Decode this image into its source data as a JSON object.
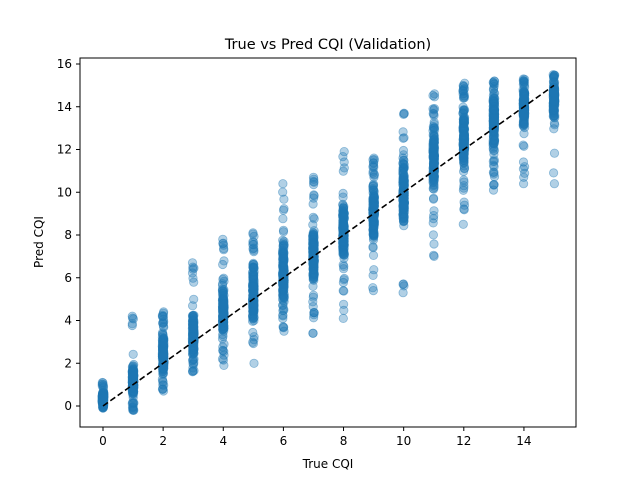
{
  "chart_data": {
    "type": "scatter",
    "title": "True vs Pred CQI (Validation)",
    "xlabel": "True CQI",
    "ylabel": "Pred CQI",
    "xlim": [
      -1.1,
      22.1
    ],
    "ylim": [
      -1.1,
      16.35
    ],
    "xticks": [
      0,
      2,
      4,
      6,
      8,
      10,
      12,
      14
    ],
    "yticks": [
      0,
      2,
      4,
      6,
      8,
      10,
      12,
      14,
      16
    ],
    "grid": false,
    "legend": "none",
    "marker_color": "#1f77b4",
    "marker_alpha": 0.35,
    "reference_line": {
      "style": "dashed",
      "color": "#000000",
      "from": [
        0,
        0
      ],
      "to": [
        15,
        15
      ]
    },
    "series": [
      {
        "categories_x": [
          0,
          1,
          2,
          3,
          4,
          5,
          6,
          7,
          8,
          9,
          10,
          11,
          12,
          13,
          14,
          15
        ],
        "pred_min": [
          -0.1,
          -0.2,
          0.7,
          1.6,
          1.9,
          2.0,
          3.5,
          3.4,
          4.1,
          5.4,
          5.3,
          7.0,
          8.5,
          10.1,
          10.4,
          10.4
        ],
        "pred_q_low": [
          0.0,
          0.4,
          1.3,
          2.2,
          3.0,
          3.8,
          4.6,
          5.5,
          6.8,
          7.6,
          8.4,
          9.8,
          10.9,
          12.0,
          13.0,
          13.4
        ],
        "pred_q_high": [
          0.7,
          2.0,
          3.6,
          4.5,
          5.6,
          6.8,
          7.9,
          8.7,
          9.6,
          10.6,
          11.8,
          13.4,
          14.2,
          14.9,
          15.1,
          15.3
        ],
        "pred_max": [
          1.1,
          4.2,
          4.4,
          6.7,
          7.8,
          8.1,
          10.4,
          10.7,
          11.9,
          11.6,
          13.7,
          14.6,
          15.1,
          15.2,
          15.3,
          15.5
        ],
        "points_per_category": 160
      }
    ]
  }
}
